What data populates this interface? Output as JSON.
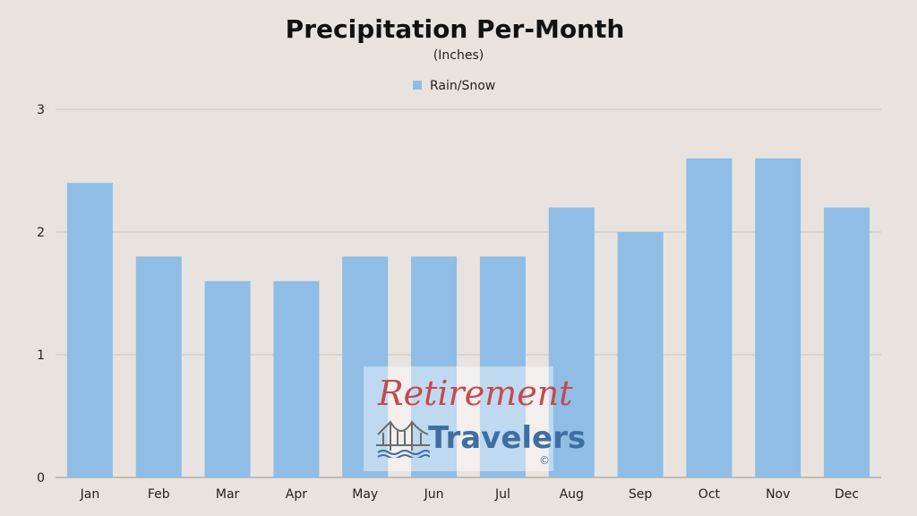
{
  "chart_data": {
    "type": "bar",
    "title": "Precipitation Per-Month",
    "subtitle": "(Inches)",
    "categories": [
      "Jan",
      "Feb",
      "Mar",
      "Apr",
      "May",
      "Jun",
      "Jul",
      "Aug",
      "Sep",
      "Oct",
      "Nov",
      "Dec"
    ],
    "series": [
      {
        "name": "Rain/Snow",
        "values": [
          2.4,
          1.8,
          1.6,
          1.6,
          1.8,
          1.8,
          1.8,
          2.2,
          2.0,
          2.6,
          2.6,
          2.2
        ]
      }
    ],
    "xlabel": "",
    "ylabel": "",
    "ylim": [
      0,
      3
    ],
    "yticks": [
      0,
      1,
      2,
      3
    ],
    "grid": true,
    "legend": "top-center",
    "colors": {
      "bar": "#8fbde6",
      "background": "#e8e3de"
    }
  },
  "watermark": {
    "line1": "Retirement",
    "line2": "Travelers",
    "mark": "©",
    "icon": "bridge-icon"
  }
}
